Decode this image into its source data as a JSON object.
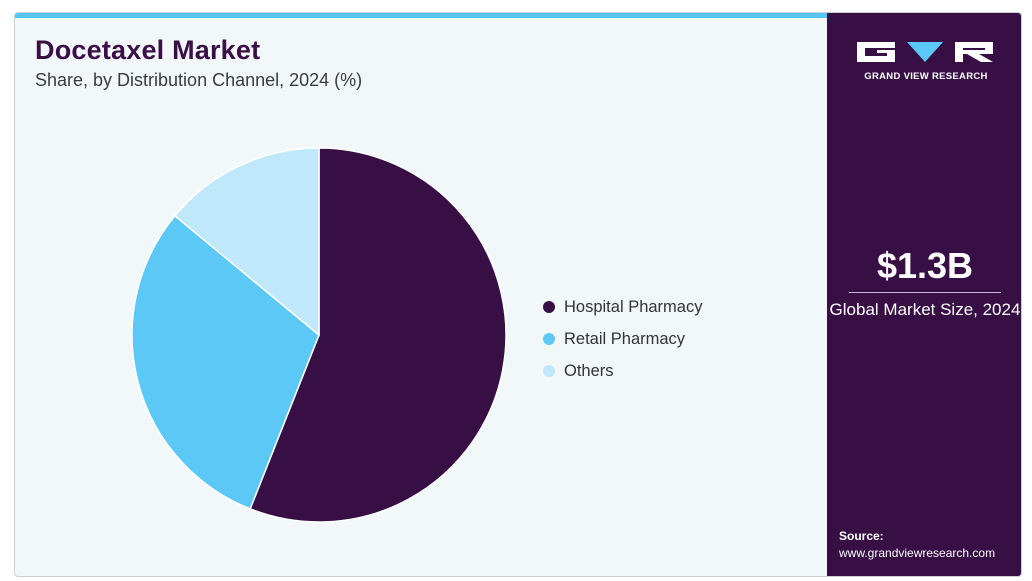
{
  "header": {
    "title": "Docetaxel Market",
    "subtitle": "Share, by Distribution Channel, 2024 (%)"
  },
  "chart_data": {
    "type": "pie",
    "categories": [
      "Hospital Pharmacy",
      "Retail Pharmacy",
      "Others"
    ],
    "values": [
      56,
      30,
      14
    ],
    "colors": [
      "#370f45",
      "#5bc8f5",
      "#bfe8fa"
    ],
    "legend_position": "right",
    "title": "Docetaxel Market",
    "subtitle": "Share, by Distribution Channel, 2024 (%)"
  },
  "sidebar": {
    "brand": "GRAND VIEW RESEARCH",
    "market_size_value": "$1.3B",
    "market_size_label": "Global Market Size, 2024",
    "source_label": "Source:",
    "source_url": "www.grandviewresearch.com",
    "accent_color": "#370f45"
  }
}
